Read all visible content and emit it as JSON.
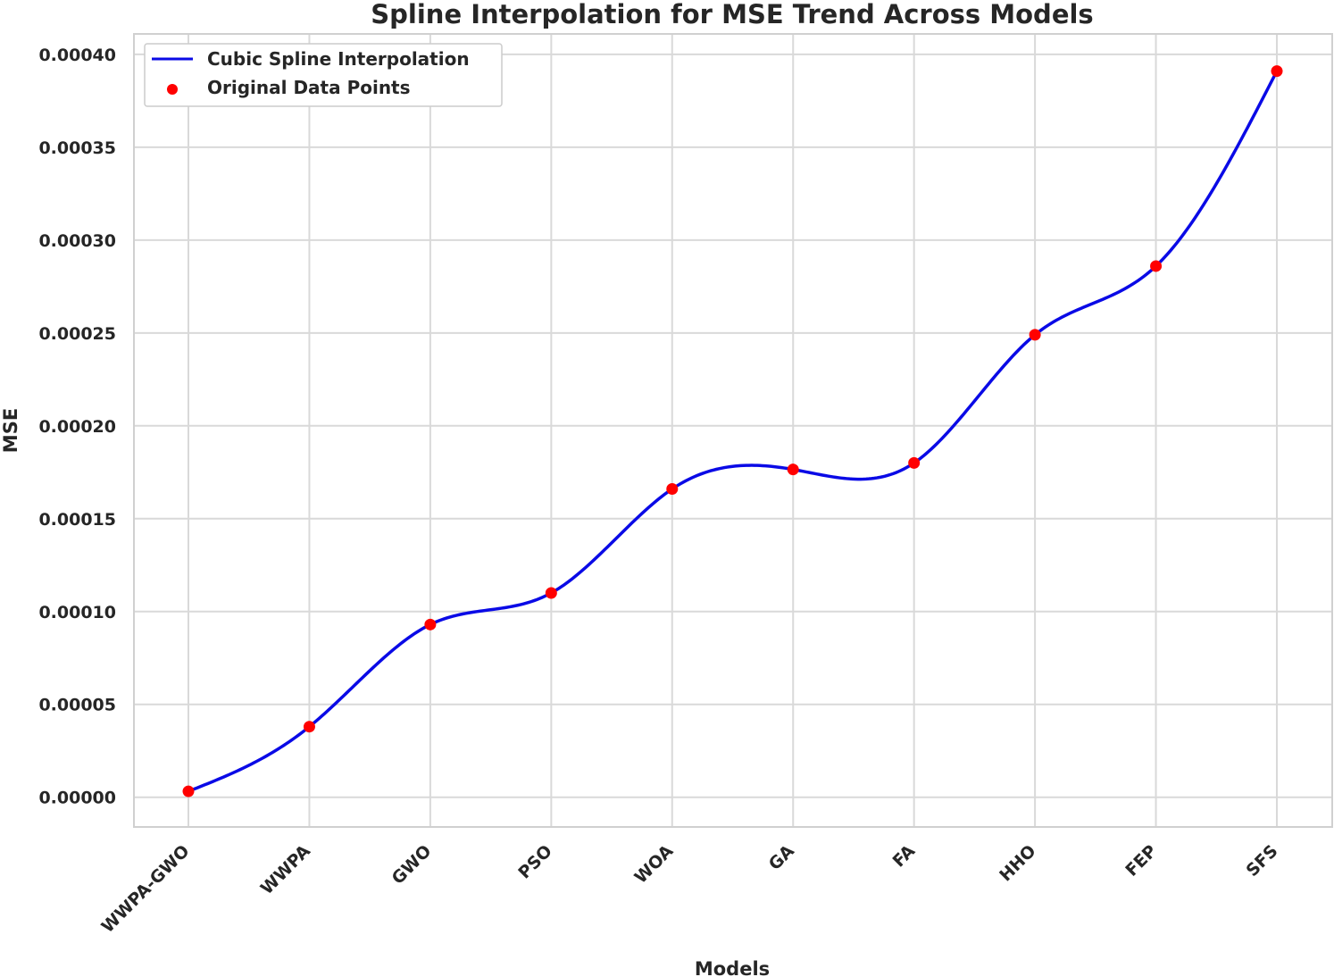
{
  "chart_data": {
    "type": "line",
    "title": "Spline Interpolation for MSE Trend Across Models",
    "xlabel": "Models",
    "ylabel": "MSE",
    "categories": [
      "WWPA-GWO",
      "WWPA",
      "GWO",
      "PSO",
      "WOA",
      "GA",
      "FA",
      "HHO",
      "FEP",
      "SFS"
    ],
    "series": [
      {
        "name": "Cubic Spline Interpolation",
        "kind": "line",
        "color": "#0a0ae6",
        "interpolation": "cubic-spline",
        "values": [
          3.2e-06,
          3.8e-05,
          9.3e-05,
          0.00011,
          0.000166,
          0.0001765,
          0.00018,
          0.000249,
          0.000286,
          0.000391
        ]
      },
      {
        "name": "Original Data Points",
        "kind": "scatter",
        "color": "#ff0000",
        "values": [
          3.2e-06,
          3.8e-05,
          9.3e-05,
          0.00011,
          0.000166,
          0.0001765,
          0.00018,
          0.000249,
          0.000286,
          0.000391
        ]
      }
    ],
    "yticks": [
      "0.00000",
      "0.00005",
      "0.00010",
      "0.00015",
      "0.00020",
      "0.00025",
      "0.00030",
      "0.00035",
      "0.00040"
    ],
    "ylim": [
      -1.6e-05,
      0.000411
    ],
    "grid": true,
    "legend_position": "top-left"
  }
}
